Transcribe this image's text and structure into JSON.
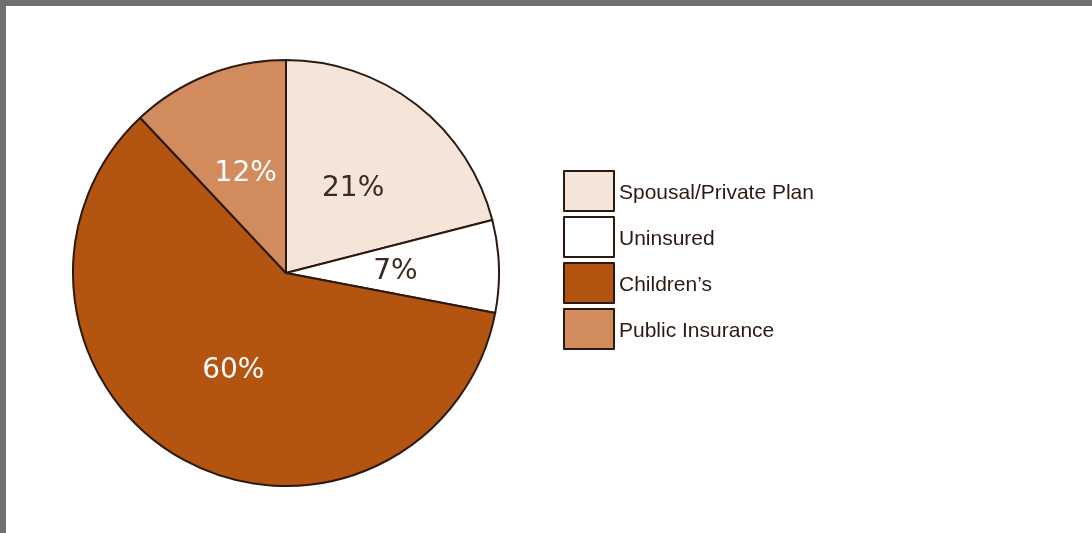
{
  "chart_data": {
    "type": "pie",
    "categories": [
      "Spousal/Private Plan",
      "Uninsured",
      "Children’s",
      "Public Insurance"
    ],
    "values": [
      21,
      7,
      60,
      12
    ],
    "colors": [
      "#f5e4d8",
      "#ffffff",
      "#b35411",
      "#d18b5c"
    ],
    "value_labels": [
      "21%",
      "7%",
      "60%",
      "12%"
    ],
    "legend": "right"
  }
}
